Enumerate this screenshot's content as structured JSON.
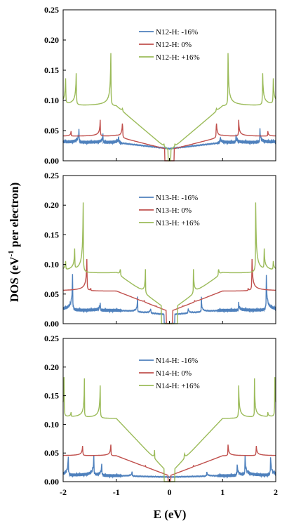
{
  "figure": {
    "ylabel_prefix": "DOS (eV",
    "ylabel_sup": "-1",
    "ylabel_suffix": " per electron)",
    "xlabel": "E (eV)"
  },
  "chart_data": [
    {
      "type": "line",
      "xlim": [
        -2,
        2
      ],
      "ylim": [
        0,
        0.25
      ],
      "yticks": [
        0,
        0.05,
        0.1,
        0.15,
        0.2,
        0.25
      ],
      "ytick_labels": [
        "0.00",
        "0.05",
        "0.10",
        "0.15",
        "0.20",
        "0.25"
      ],
      "xticks": [
        -2,
        -1,
        0,
        1,
        2
      ],
      "xtick_labels": [
        "-2",
        "-1",
        "0",
        "1",
        "2"
      ],
      "show_xtick_labels": false,
      "legend_position": "top-center",
      "series": [
        {
          "name": "N12-H: -16%",
          "color": "#4f81bd",
          "base": 0.03,
          "base_mid": 0.02,
          "gap": 0.0,
          "peaks": [
            [
              1.95,
              0.033
            ],
            [
              1.7,
              0.06
            ],
            [
              1.25,
              0.047
            ],
            [
              0.95,
              0.045
            ]
          ]
        },
        {
          "name": "N12-H: 0%",
          "color": "#c0504d",
          "base": 0.04,
          "base_mid": 0.018,
          "gap": 0.18,
          "peaks": [
            [
              1.85,
              0.05
            ],
            [
              1.3,
              0.078
            ],
            [
              0.88,
              0.08
            ],
            [
              0.3,
              0.025
            ]
          ]
        },
        {
          "name": "N12-H: +16%",
          "color": "#9bbb59",
          "base": 0.09,
          "base_mid": 0.016,
          "gap": 0.05,
          "peaks": [
            [
              1.95,
              0.16
            ],
            [
              1.75,
              0.175
            ],
            [
              1.1,
              0.212
            ],
            [
              0.88,
              0.09
            ],
            [
              0.1,
              0.03
            ]
          ]
        }
      ]
    },
    {
      "type": "line",
      "xlim": [
        -2,
        2
      ],
      "ylim": [
        0,
        0.25
      ],
      "yticks": [
        0,
        0.05,
        0.1,
        0.15,
        0.2,
        0.25
      ],
      "ytick_labels": [
        "0.00",
        "0.05",
        "0.10",
        "0.15",
        "0.20",
        "0.25"
      ],
      "xticks": [
        -2,
        -1,
        0,
        1,
        2
      ],
      "xtick_labels": [
        "-2",
        "-1",
        "0",
        "1",
        "2"
      ],
      "show_xtick_labels": false,
      "legend_position": "top-center",
      "series": [
        {
          "name": "N13-H: -16%",
          "color": "#4f81bd",
          "base": 0.022,
          "base_mid": 0.015,
          "gap": 0.2,
          "peaks": [
            [
              1.82,
              0.105
            ],
            [
              1.3,
              0.04
            ],
            [
              0.6,
              0.045
            ],
            [
              0.35,
              0.03
            ]
          ]
        },
        {
          "name": "N13-H: 0%",
          "color": "#c0504d",
          "base": 0.055,
          "base_mid": 0.02,
          "gap": 0.12,
          "peaks": [
            [
              1.55,
              0.14
            ],
            [
              1.48,
              0.06
            ],
            [
              0.47,
              0.04
            ],
            [
              0.25,
              0.03
            ]
          ]
        },
        {
          "name": "N13-H: +16%",
          "color": "#9bbb59",
          "base": 0.085,
          "base_mid": 0.02,
          "gap": 0.3,
          "peaks": [
            [
              1.95,
              0.11
            ],
            [
              1.62,
              0.25
            ],
            [
              1.78,
              0.14
            ],
            [
              0.92,
              0.1
            ],
            [
              0.65,
              0.05
            ],
            [
              0.45,
              0.1
            ]
          ]
        }
      ]
    },
    {
      "type": "line",
      "xlim": [
        -2,
        2
      ],
      "ylim": [
        0,
        0.25
      ],
      "yticks": [
        0,
        0.05,
        0.1,
        0.15,
        0.2,
        0.25
      ],
      "ytick_labels": [
        "0.00",
        "0.05",
        "0.10",
        "0.15",
        "0.20",
        "0.25"
      ],
      "xticks": [
        -2,
        -1,
        0,
        1,
        2
      ],
      "xtick_labels": [
        "-2",
        "-1",
        "0",
        "1",
        "2"
      ],
      "show_xtick_labels": true,
      "legend_position": "top-center",
      "series": [
        {
          "name": "N14-H: -16%",
          "color": "#4f81bd",
          "base": 0.01,
          "base_mid": 0.008,
          "gap": 0.0,
          "peaks": [
            [
              1.9,
              0.058
            ],
            [
              1.42,
              0.057
            ],
            [
              1.27,
              0.04
            ],
            [
              0.7,
              0.02
            ]
          ]
        },
        {
          "name": "N14-H: 0%",
          "color": "#c0504d",
          "base": 0.045,
          "base_mid": 0.01,
          "gap": 0.05,
          "peaks": [
            [
              1.63,
              0.072
            ],
            [
              1.1,
              0.072
            ],
            [
              0.85,
              0.035
            ],
            [
              0.45,
              0.028
            ],
            [
              0.0,
              0.012
            ]
          ]
        },
        {
          "name": "N14-H: +16%",
          "color": "#9bbb59",
          "base": 0.11,
          "base_mid": 0.012,
          "gap": 0.2,
          "peaks": [
            [
              1.98,
              0.21
            ],
            [
              1.85,
              0.12
            ],
            [
              1.6,
              0.18
            ],
            [
              1.3,
              0.19
            ],
            [
              0.6,
              0.062
            ],
            [
              0.28,
              0.055
            ]
          ]
        }
      ]
    }
  ]
}
